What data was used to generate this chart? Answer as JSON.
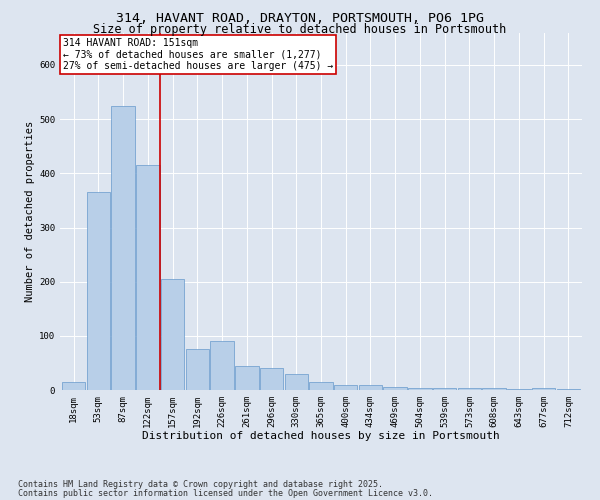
{
  "title1": "314, HAVANT ROAD, DRAYTON, PORTSMOUTH, PO6 1PG",
  "title2": "Size of property relative to detached houses in Portsmouth",
  "xlabel": "Distribution of detached houses by size in Portsmouth",
  "ylabel": "Number of detached properties",
  "categories": [
    "18sqm",
    "53sqm",
    "87sqm",
    "122sqm",
    "157sqm",
    "192sqm",
    "226sqm",
    "261sqm",
    "296sqm",
    "330sqm",
    "365sqm",
    "400sqm",
    "434sqm",
    "469sqm",
    "504sqm",
    "539sqm",
    "573sqm",
    "608sqm",
    "643sqm",
    "677sqm",
    "712sqm"
  ],
  "values": [
    15,
    365,
    525,
    415,
    205,
    75,
    90,
    45,
    40,
    30,
    15,
    10,
    10,
    5,
    3,
    3,
    3,
    3,
    1,
    3,
    1
  ],
  "bar_color": "#b8cfe8",
  "bar_edge_color": "#6699cc",
  "vline_x": 3.5,
  "vline_color": "#cc0000",
  "annotation_text": "314 HAVANT ROAD: 151sqm\n← 73% of detached houses are smaller (1,277)\n27% of semi-detached houses are larger (475) →",
  "annotation_box_color": "#ffffff",
  "annotation_border_color": "#cc0000",
  "background_color": "#dde5f0",
  "plot_bg_color": "#dde5f0",
  "ylim": [
    0,
    660
  ],
  "yticks": [
    0,
    100,
    200,
    300,
    400,
    500,
    600
  ],
  "footnote1": "Contains HM Land Registry data © Crown copyright and database right 2025.",
  "footnote2": "Contains public sector information licensed under the Open Government Licence v3.0.",
  "title1_fontsize": 9.5,
  "title2_fontsize": 8.5,
  "xlabel_fontsize": 8,
  "ylabel_fontsize": 7.5,
  "tick_fontsize": 6.5,
  "annot_fontsize": 7,
  "footnote_fontsize": 6
}
